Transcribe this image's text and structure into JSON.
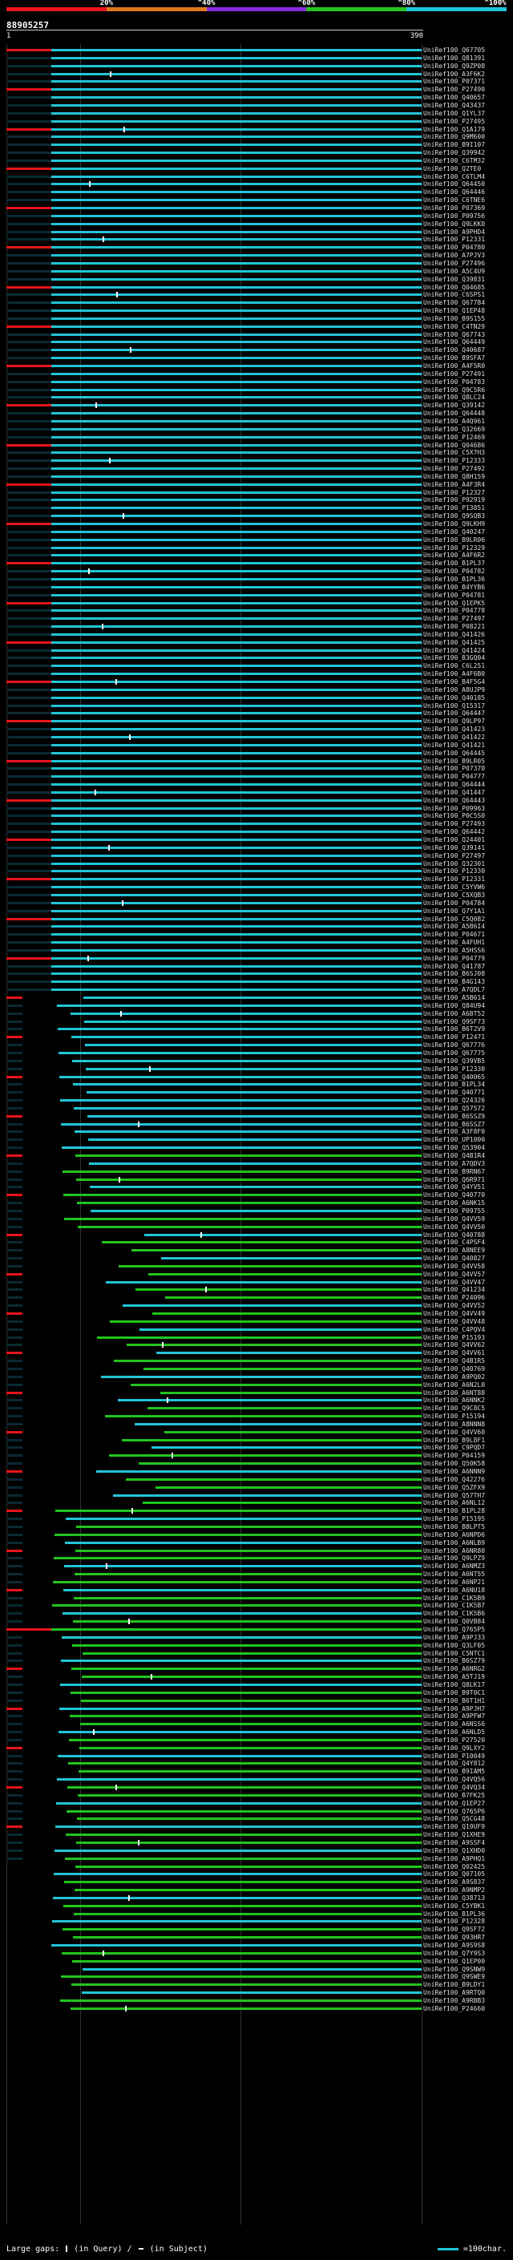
{
  "legend": {
    "ticks": [
      "20%",
      "^40%",
      "^60%",
      "^80%",
      "^100%"
    ],
    "colors": [
      "#e8141c",
      "#e0781a",
      "#8a2be2",
      "#22c41e",
      "#22c4d8"
    ]
  },
  "query_id": "88905257",
  "ruler": {
    "start": "1",
    "end": "390"
  },
  "footer": {
    "large_gaps_label": "Large gaps:",
    "in_query_label": "(in Query)",
    "in_subject_label": "(in Subject)",
    "scale_label": "=100char."
  },
  "hits": [
    "UniRef100_Q67705",
    "UniRef100_Q81391",
    "UniRef100_Q9ZP08",
    "UniRef100_A3F6K2",
    "UniRef100_P07371",
    "UniRef100_P27490",
    "UniRef100_Q40657",
    "UniRef100_Q43437",
    "UniRef100_Q1YL37",
    "UniRef100_P27495",
    "UniRef100_Q1A179",
    "UniRef100_Q9M600",
    "UniRef100_B9I107",
    "UniRef100_Q39942",
    "UniRef100_C6TM32",
    "UniRef100_Q2TE0",
    "UniRef100_C6TLM4",
    "UniRef100_Q64450",
    "UniRef100_Q64446",
    "UniRef100_C6TNE6",
    "UniRef100_P07369",
    "UniRef100_P09756",
    "UniRef100_Q9LKK0",
    "UniRef100_A9PHD4",
    "UniRef100_P12331",
    "UniRef100_P04780",
    "UniRef100_A7PJV3",
    "UniRef100_P27496",
    "UniRef100_A5C4U9",
    "UniRef100_Q39831",
    "UniRef100_Q04685",
    "UniRef100_C6SPS1",
    "UniRef100_Q67784",
    "UniRef100_Q1EP48",
    "UniRef100_B9S155",
    "UniRef100_C4TN29",
    "UniRef100_Q67743",
    "UniRef100_Q64449",
    "UniRef100_Q40687",
    "UniRef100_B9SFA7",
    "UniRef100_A4F5R0",
    "UniRef100_P27491",
    "UniRef100_P04783",
    "UniRef100_Q9C5R6",
    "UniRef100_Q8LC24",
    "UniRef100_Q39142",
    "UniRef100_Q64448",
    "UniRef100_A4Q961",
    "UniRef100_Q32669",
    "UniRef100_P12469",
    "UniRef100_Q04686",
    "UniRef100_C5X7H3",
    "UniRef100_P12333",
    "UniRef100_P27492",
    "UniRef100_Q8H159",
    "UniRef100_A4F3R4",
    "UniRef100_P12327",
    "UniRef100_P92919",
    "UniRef100_P13851",
    "UniRef100_Q9SQB3",
    "UniRef100_Q9LKH9",
    "UniRef100_Q40247",
    "UniRef100_B9LR06",
    "UniRef100_P12329",
    "UniRef100_A4F6R2",
    "UniRef100_B1PL37",
    "UniRef100_P04782",
    "UniRef100_B1PL36",
    "UniRef100_B4YYB6",
    "UniRef100_P04781",
    "UniRef100_Q1EPK5",
    "UniRef100_P04778",
    "UniRef100_P27497",
    "UniRef100_P08221",
    "UniRef100_Q41426",
    "UniRef100_Q41425",
    "UniRef100_Q41424",
    "UniRef100_B3GQ04",
    "UniRef100_C6L251",
    "UniRef100_A4F6B0",
    "UniRef100_B4F5G4",
    "UniRef100_A8UJP9",
    "UniRef100_Q40185",
    "UniRef100_Q15317",
    "UniRef100_Q64447",
    "UniRef100_Q9LP97",
    "UniRef100_Q41423",
    "UniRef100_Q41422",
    "UniRef100_Q41421",
    "UniRef100_Q64445",
    "UniRef100_B9LR05",
    "UniRef100_P07370",
    "UniRef100_P04777",
    "UniRef100_Q64444",
    "UniRef100_Q41447",
    "UniRef100_Q64443",
    "UniRef100_P09963",
    "UniRef100_P0C5S0",
    "UniRef100_P27493",
    "UniRef100_Q64442",
    "UniRef100_Q24401",
    "UniRef100_Q39141",
    "UniRef100_P27497",
    "UniRef100_Q32301",
    "UniRef100_P12330",
    "UniRef100_P12331",
    "UniRef100_C5YVW6",
    "UniRef100_C5XQB3",
    "UniRef100_P04784",
    "UniRef100_Q7Y1A1",
    "UniRef100_C5Q082",
    "UniRef100_A5B6I4",
    "UniRef100_P04671",
    "UniRef100_A4FUH1",
    "UniRef100_A5HSS6",
    "UniRef100_P04779",
    "UniRef100_Q41787",
    "UniRef100_B6SJ08",
    "UniRef100_B4G143",
    "UniRef100_A7QDL7",
    "UniRef100_A5B614",
    "UniRef100_Q84U94",
    "UniRef100_A6BT52",
    "UniRef100_Q9SF73",
    "UniRef100_B6T2V9",
    "UniRef100_P12471",
    "UniRef100_Q67776",
    "UniRef100_Q67775",
    "UniRef100_Q39VB5",
    "UniRef100_P12330",
    "UniRef100_Q40065",
    "UniRef100_B1PL34",
    "UniRef100_Q40771",
    "UniRef100_Q24326",
    "UniRef100_Q57572",
    "UniRef100_B6SSZ9",
    "UniRef100_B6SSZ7",
    "UniRef100_A3F8F0",
    "UniRef100_UP1000",
    "UniRef100_Q53904",
    "UniRef100_Q4B1R4",
    "UniRef100_A7QDV3",
    "UniRef100_B9RN67",
    "UniRef100_Q6R971",
    "UniRef100_Q4YV51",
    "UniRef100_Q40770",
    "UniRef100_A6NK15",
    "UniRef100_P09755",
    "UniRef100_Q4VV59",
    "UniRef100_Q4VV50",
    "UniRef100_Q40788",
    "UniRef100_C4PSF4",
    "UniRef100_A8NEE9",
    "UniRef100_Q40827",
    "UniRef100_Q4VV58",
    "UniRef100_Q4VV57",
    "UniRef100_Q4VV47",
    "UniRef100_Q41234",
    "UniRef100_P24096",
    "UniRef100_Q4VV52",
    "UniRef100_Q4VV49",
    "UniRef100_Q4VV48",
    "UniRef100_C4PQV4",
    "UniRef100_P15193",
    "UniRef100_Q4VV62",
    "UniRef100_Q4VV61",
    "UniRef100_Q4B1R5",
    "UniRef100_Q40769",
    "UniRef100_A9PQ02",
    "UniRef100_A6N2L0",
    "UniRef100_A6NT88",
    "UniRef100_A6NNK2",
    "UniRef100_Q9C8C5",
    "UniRef100_P15194",
    "UniRef100_A8NNN8",
    "UniRef100_Q4VV60",
    "UniRef100_B9L8F1",
    "UniRef100_C9PQD7",
    "UniRef100_P04159",
    "UniRef100_Q50K58",
    "UniRef100_A6NNN9",
    "UniRef100_Q42276",
    "UniRef100_Q5ZFX9",
    "UniRef100_Q57TH7",
    "UniRef100_A6NL12",
    "UniRef100_B1PL28",
    "UniRef100_P15195",
    "UniRef100_B8LPT5",
    "UniRef100_A6NPD6",
    "UniRef100_A6NLB9",
    "UniRef100_A6NR80",
    "UniRef100_Q9LPZ9",
    "UniRef100_A6NMZ3",
    "UniRef100_A6NT55",
    "UniRef100_A6NP21",
    "UniRef100_A6NU18",
    "UniRef100_C1K5B9",
    "UniRef100_C1K5B7",
    "UniRef100_C1K5B6",
    "UniRef100_Q0VB84",
    "UniRef100_Q765P5",
    "UniRef100_A9PJ33",
    "UniRef100_Q3LF05",
    "UniRef100_C5NTC1",
    "UniRef100_B6SZ79",
    "UniRef100_A6NRG2",
    "UniRef100_A5TJ19",
    "UniRef100_Q8LK17",
    "UniRef100_B9T0C1",
    "UniRef100_B6T1H1",
    "UniRef100_A9PJH7",
    "UniRef100_A9PFW7",
    "UniRef100_A6NSS6",
    "UniRef100_A6NLD5",
    "UniRef100_P27520",
    "UniRef100_Q9LXY2",
    "UniRef100_P10049",
    "UniRef100_Q4Y812",
    "UniRef100_B9IAM5",
    "UniRef100_Q4VQ56",
    "UniRef100_Q4VQ34",
    "UniRef100_B7FK25",
    "UniRef100_Q1EP27",
    "UniRef100_Q765P6",
    "UniRef100_Q5CG48",
    "UniRef100_Q19UF9",
    "UniRef100_Q1XHE9",
    "UniRef100_A9SSF4",
    "UniRef100_Q1XHD0",
    "UniRef100_A9PHQ1",
    "UniRef100_Q02425",
    "UniRef100_Q07105",
    "UniRef100_A9S837",
    "UniRef100_A9NMP2",
    "UniRef100_Q38713",
    "UniRef100_C5YBK1",
    "UniRef100_B1PL36",
    "UniRef100_P12328",
    "UniRef100_Q9SF72",
    "UniRef100_Q93HR7",
    "UniRef100_A9S9S8",
    "UniRef100_Q7Y9S3",
    "UniRef100_Q1EP00",
    "UniRef100_Q9SNW9",
    "UniRef100_Q9SWE9",
    "UniRef100_B9LDY1",
    "UniRef100_A9RTQ0",
    "UniRef100_A9RBB3",
    "UniRef100_P24660"
  ]
}
